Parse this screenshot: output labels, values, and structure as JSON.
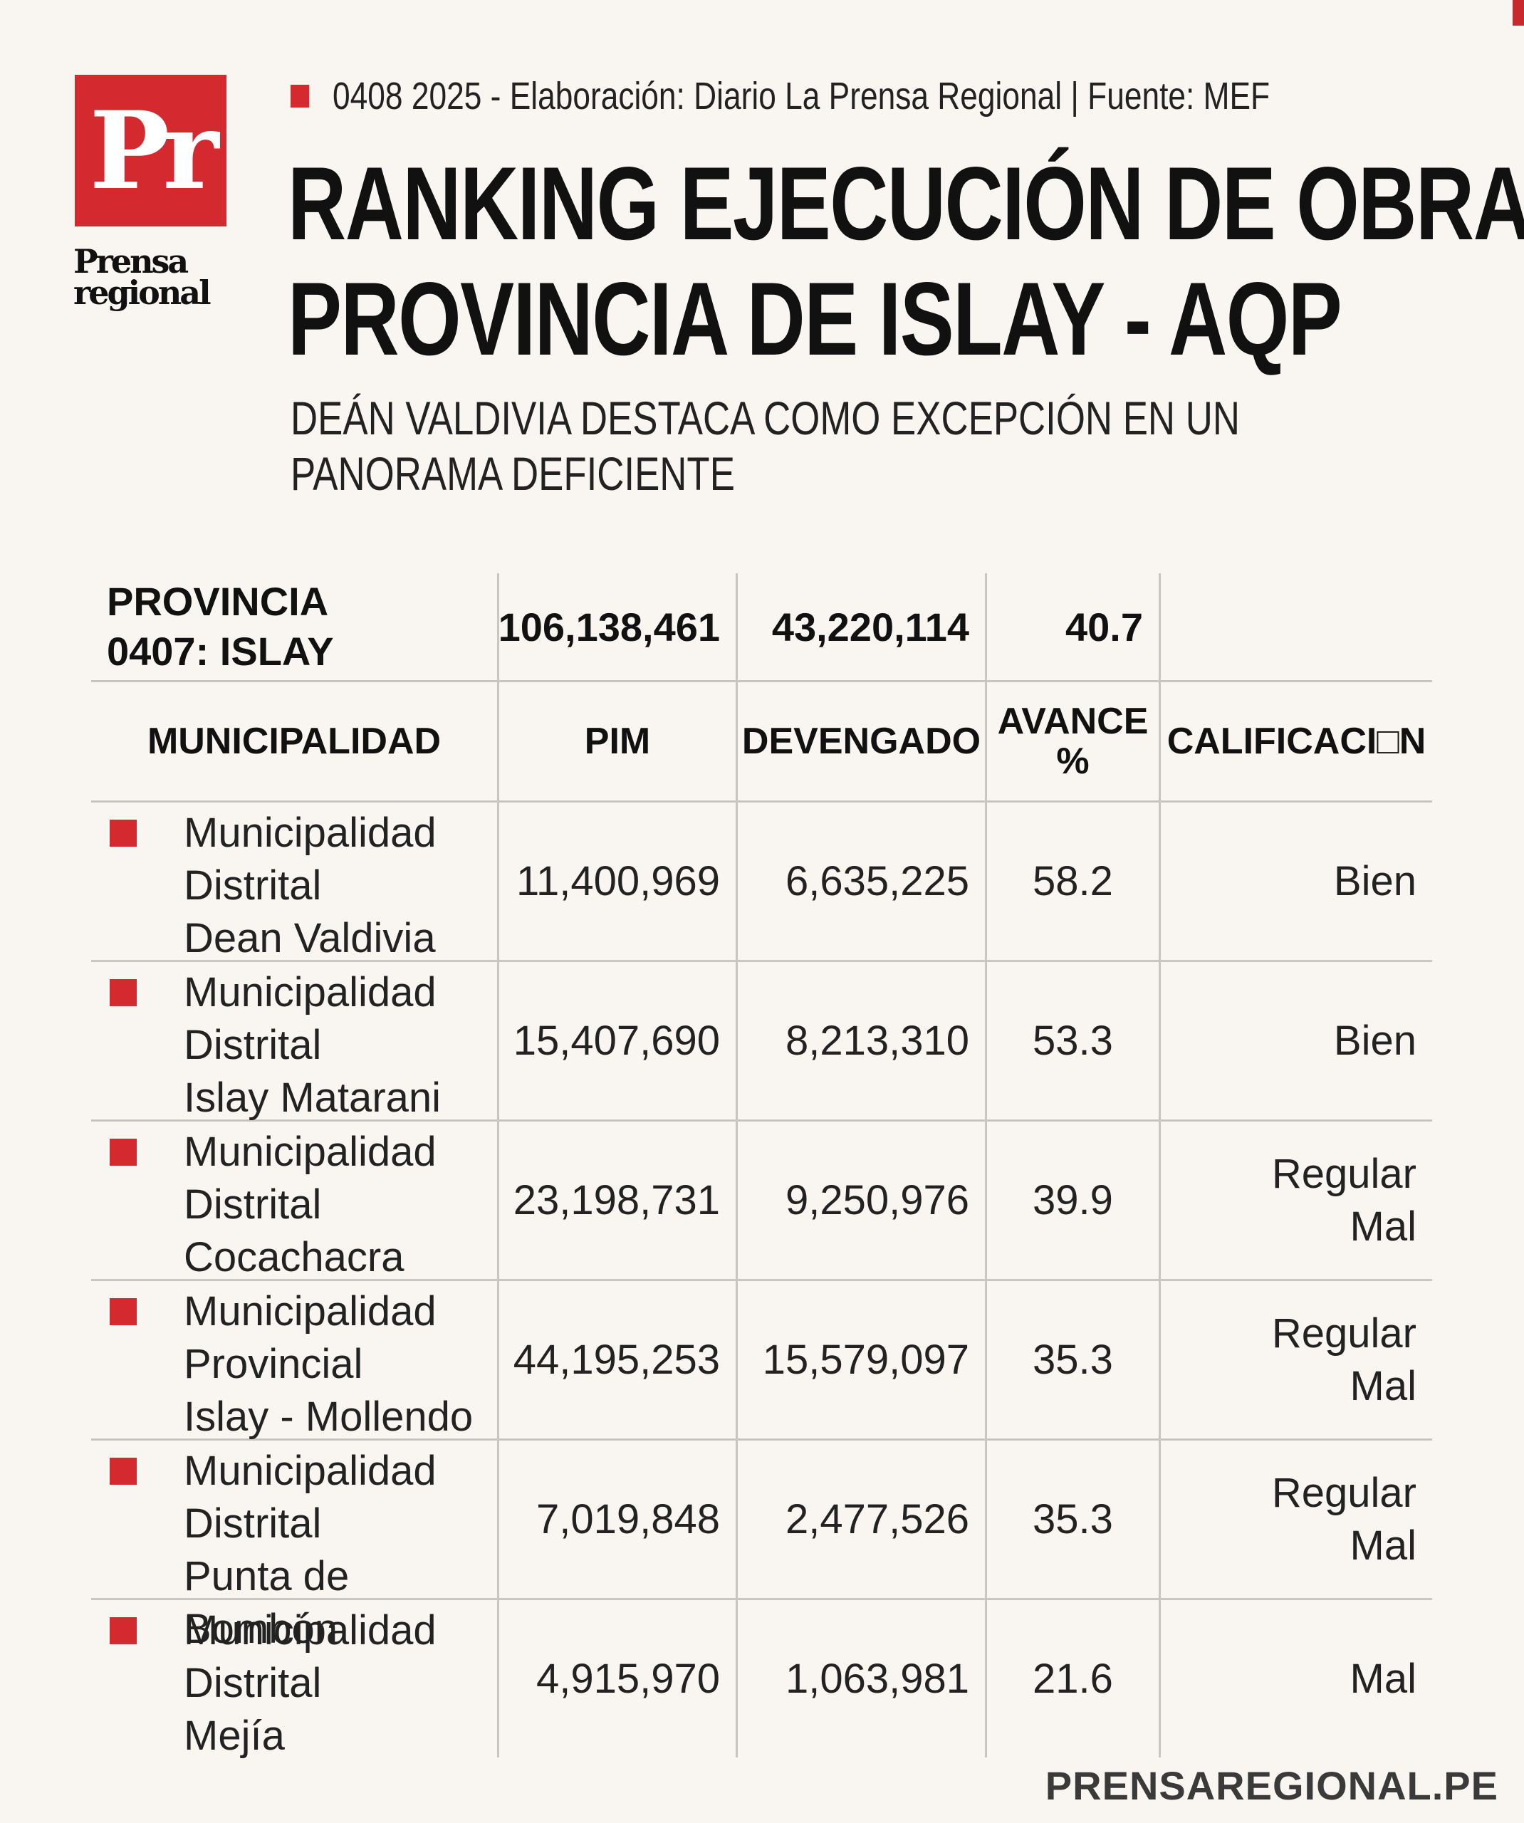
{
  "brand": {
    "logo_letters": "Pr",
    "logo_word_1": "Prensa",
    "logo_word_2": "regional"
  },
  "meta_line": "0408 2025 -  Elaboración: Diario La Prensa Regional | Fuente: MEF",
  "title": {
    "line1": "RANKING EJECUCIÓN DE OBRAS",
    "line2": "PROVINCIA DE ISLAY - AQP"
  },
  "subtitle": {
    "line1": "DEÁN VALDIVIA DESTACA COMO EXCEPCIÓN EN UN",
    "line2": "PANORAMA DEFICIENTE"
  },
  "province": {
    "label_1": "PROVINCIA",
    "label_2": "0407: ISLAY",
    "pim": "106,138,461",
    "devengado": "43,220,114",
    "avance": "40.7"
  },
  "headers": {
    "municipalidad": "MUNICIPALIDAD",
    "pim": "PIM",
    "devengado": "DEVENGADO",
    "avance_1": "AVANCE",
    "avance_2": "%",
    "calificacion": "CALIFICACI□N"
  },
  "rows": [
    {
      "name_1": "Municipalidad",
      "name_2": "Distrital",
      "name_3": "Dean Valdivia",
      "pim": "11,400,969",
      "devengado": "6,635,225",
      "avance": "58.2",
      "cal_1": "Bien",
      "cal_2": ""
    },
    {
      "name_1": "Municipalidad",
      "name_2": "Distrital",
      "name_3": "Islay Matarani",
      "pim": "15,407,690",
      "devengado": "8,213,310",
      "avance": "53.3",
      "cal_1": "Bien",
      "cal_2": ""
    },
    {
      "name_1": "Municipalidad",
      "name_2": "Distrital",
      "name_3": "Cocachacra",
      "pim": "23,198,731",
      "devengado": "9,250,976",
      "avance": "39.9",
      "cal_1": "Regular",
      "cal_2": "Mal"
    },
    {
      "name_1": "Municipalidad",
      "name_2": "Provincial",
      "name_3": "Islay - Mollendo",
      "pim": "44,195,253",
      "devengado": "15,579,097",
      "avance": "35.3",
      "cal_1": "Regular",
      "cal_2": "Mal"
    },
    {
      "name_1": "Municipalidad",
      "name_2": "Distrital",
      "name_3": "Punta de Bombón",
      "pim": "7,019,848",
      "devengado": "2,477,526",
      "avance": "35.3",
      "cal_1": "Regular",
      "cal_2": "Mal"
    },
    {
      "name_1": "Municipalidad",
      "name_2": "Distrital",
      "name_3": "Mejía",
      "pim": "4,915,970",
      "devengado": "1,063,981",
      "avance": "21.6",
      "cal_1": "Mal",
      "cal_2": ""
    }
  ],
  "footer_url": "PRENSAREGIONAL.PE",
  "colors": {
    "accent": "#d42a2f",
    "background": "#f9f6f2",
    "rule": "#c9c6c2"
  }
}
